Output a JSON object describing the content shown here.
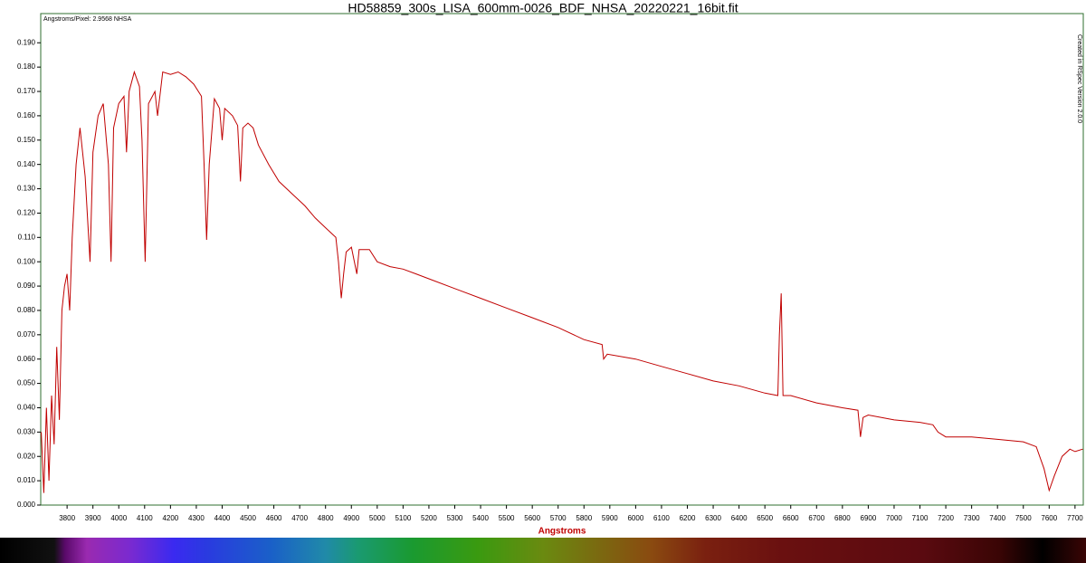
{
  "chart_data": {
    "type": "line",
    "title": "HD58859_300s_LISA_600mm-0026_BDF_NHSA_20220221_16bit.fit",
    "annotation": "Angstroms/Pixel: 2.9568 NHSA",
    "side_note": "Created in RSpec Version 2.0.0",
    "x_label": "Angstroms",
    "color": "#c00000",
    "xlim": [
      3698,
      7732
    ],
    "ylim": [
      0,
      0.202
    ],
    "xticks": [
      3800,
      3900,
      4000,
      4100,
      4200,
      4300,
      4400,
      4500,
      4600,
      4700,
      4800,
      4900,
      5000,
      5100,
      5200,
      5300,
      5400,
      5500,
      5600,
      5700,
      5800,
      5900,
      6000,
      6100,
      6200,
      6300,
      6400,
      6500,
      6600,
      6700,
      6800,
      6900,
      7000,
      7100,
      7200,
      7300,
      7400,
      7500,
      7600,
      7700
    ],
    "yticks": [
      {
        "value": 0,
        "label": "0.000"
      },
      {
        "value": 0.01,
        "label": "0.010"
      },
      {
        "value": 0.02,
        "label": "0.020"
      },
      {
        "value": 0.03,
        "label": "0.030"
      },
      {
        "value": 0.04,
        "label": "0.040"
      },
      {
        "value": 0.05,
        "label": "0.050"
      },
      {
        "value": 0.06,
        "label": "0.060"
      },
      {
        "value": 0.07,
        "label": "0.070"
      },
      {
        "value": 0.08,
        "label": "0.080"
      },
      {
        "value": 0.09,
        "label": "0.090"
      },
      {
        "value": 0.1,
        "label": "0.100"
      },
      {
        "value": 0.11,
        "label": "0.110"
      },
      {
        "value": 0.12,
        "label": "0.120"
      },
      {
        "value": 0.13,
        "label": "0.130"
      },
      {
        "value": 0.14,
        "label": "0.140"
      },
      {
        "value": 0.15,
        "label": "0.150"
      },
      {
        "value": 0.16,
        "label": "0.160"
      },
      {
        "value": 0.17,
        "label": "0.170"
      },
      {
        "value": 0.18,
        "label": "0.180"
      },
      {
        "value": 0.19,
        "label": "0.190"
      }
    ],
    "x": [
      3700,
      3710,
      3720,
      3730,
      3740,
      3750,
      3760,
      3770,
      3780,
      3790,
      3800,
      3810,
      3820,
      3835,
      3850,
      3870,
      3889,
      3900,
      3920,
      3940,
      3960,
      3970,
      3980,
      4000,
      4020,
      4030,
      4040,
      4060,
      4080,
      4090,
      4102,
      4115,
      4140,
      4150,
      4170,
      4200,
      4230,
      4260,
      4290,
      4320,
      4330,
      4340,
      4350,
      4370,
      4390,
      4400,
      4410,
      4440,
      4460,
      4471,
      4480,
      4500,
      4520,
      4540,
      4580,
      4620,
      4680,
      4720,
      4760,
      4800,
      4840,
      4850,
      4861,
      4870,
      4880,
      4900,
      4921,
      4930,
      4970,
      5000,
      5050,
      5100,
      5150,
      5200,
      5300,
      5400,
      5500,
      5600,
      5700,
      5800,
      5870,
      5876,
      5890,
      6000,
      6100,
      6200,
      6300,
      6400,
      6500,
      6550,
      6556,
      6563,
      6570,
      6600,
      6700,
      6800,
      6860,
      6870,
      6880,
      6900,
      7000,
      7100,
      7150,
      7170,
      7200,
      7300,
      7400,
      7500,
      7550,
      7580,
      7600,
      7620,
      7650,
      7680,
      7700,
      7730
    ],
    "values": [
      0.03,
      0.005,
      0.04,
      0.01,
      0.045,
      0.025,
      0.065,
      0.035,
      0.08,
      0.09,
      0.095,
      0.08,
      0.11,
      0.14,
      0.155,
      0.135,
      0.1,
      0.145,
      0.16,
      0.165,
      0.14,
      0.1,
      0.155,
      0.165,
      0.168,
      0.145,
      0.17,
      0.178,
      0.172,
      0.15,
      0.1,
      0.165,
      0.17,
      0.16,
      0.178,
      0.177,
      0.178,
      0.176,
      0.173,
      0.168,
      0.14,
      0.109,
      0.14,
      0.167,
      0.163,
      0.15,
      0.163,
      0.16,
      0.156,
      0.133,
      0.155,
      0.157,
      0.155,
      0.148,
      0.14,
      0.133,
      0.127,
      0.123,
      0.118,
      0.114,
      0.11,
      0.1,
      0.085,
      0.095,
      0.104,
      0.106,
      0.095,
      0.105,
      0.105,
      0.1,
      0.098,
      0.097,
      0.095,
      0.093,
      0.089,
      0.085,
      0.081,
      0.077,
      0.073,
      0.068,
      0.066,
      0.06,
      0.062,
      0.06,
      0.057,
      0.054,
      0.051,
      0.049,
      0.046,
      0.045,
      0.07,
      0.087,
      0.045,
      0.045,
      0.042,
      0.04,
      0.039,
      0.028,
      0.036,
      0.037,
      0.035,
      0.034,
      0.033,
      0.03,
      0.028,
      0.028,
      0.027,
      0.026,
      0.024,
      0.015,
      0.006,
      0.012,
      0.02,
      0.023,
      0.022,
      0.023
    ]
  }
}
